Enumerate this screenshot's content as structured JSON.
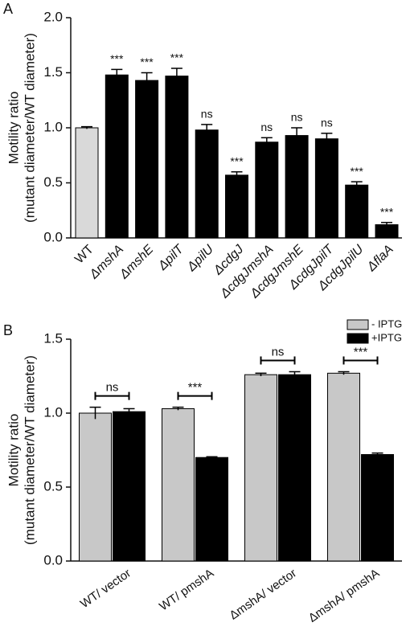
{
  "chart_data": [
    {
      "type": "bar",
      "panel_label": "A",
      "ylabel": [
        "Motility ratio",
        "(mutant diameter/WT diameter)"
      ],
      "categories": [
        "WT",
        "ΔmshA",
        "ΔmshE",
        "ΔpilT",
        "ΔpilU",
        "ΔcdgJ",
        "ΔcdgJmshA",
        "ΔcdgJmshE",
        "ΔcdgJpilT",
        "ΔcdgJpilU",
        "ΔflaA"
      ],
      "values": [
        1.0,
        1.48,
        1.43,
        1.47,
        0.98,
        0.57,
        0.87,
        0.93,
        0.9,
        0.48,
        0.12
      ],
      "errors": [
        0.01,
        0.05,
        0.07,
        0.07,
        0.05,
        0.03,
        0.04,
        0.07,
        0.05,
        0.03,
        0.02
      ],
      "colors": [
        "#d9d9d9",
        "#000000",
        "#000000",
        "#000000",
        "#000000",
        "#000000",
        "#000000",
        "#000000",
        "#000000",
        "#000000",
        "#000000"
      ],
      "annotations": [
        null,
        "***",
        "***",
        "***",
        "ns",
        "***",
        "ns",
        "ns",
        "ns",
        "***",
        "***"
      ],
      "ylim": [
        0,
        2
      ],
      "yticks": [
        {
          "value": 0,
          "label": "0.0"
        },
        {
          "value": 0.5,
          "label": "0.5"
        },
        {
          "value": 1,
          "label": "1.0"
        },
        {
          "value": 1.5,
          "label": "1.5"
        },
        {
          "value": 2,
          "label": "2.0"
        }
      ]
    },
    {
      "type": "grouped_bar",
      "panel_label": "B",
      "ylabel": [
        "Motility ratio",
        "(mutant diameter/WT diameter)"
      ],
      "categories": [
        "WT/ vector",
        "WT/ pmshA",
        "ΔmshA/ vector",
        "ΔmshA/ pmshA"
      ],
      "series": [
        {
          "name": "- IPTG",
          "color": "#c8c8c8",
          "values": [
            1.0,
            1.03,
            1.26,
            1.27
          ],
          "errors": [
            0.04,
            0.01,
            0.01,
            0.01
          ]
        },
        {
          "name": "+IPTG",
          "color": "#000000",
          "values": [
            1.01,
            0.7,
            1.26,
            0.72
          ],
          "errors": [
            0.02,
            0.005,
            0.02,
            0.01
          ]
        }
      ],
      "annotations": [
        "ns",
        "***",
        "ns",
        "***"
      ],
      "legend": "upper right",
      "ylim": [
        0,
        1.5
      ],
      "yticks": [
        {
          "value": 0,
          "label": "0.0"
        },
        {
          "value": 0.5,
          "label": "0.5"
        },
        {
          "value": 1,
          "label": "1.0"
        },
        {
          "value": 1.5,
          "label": "1.5"
        }
      ]
    }
  ]
}
